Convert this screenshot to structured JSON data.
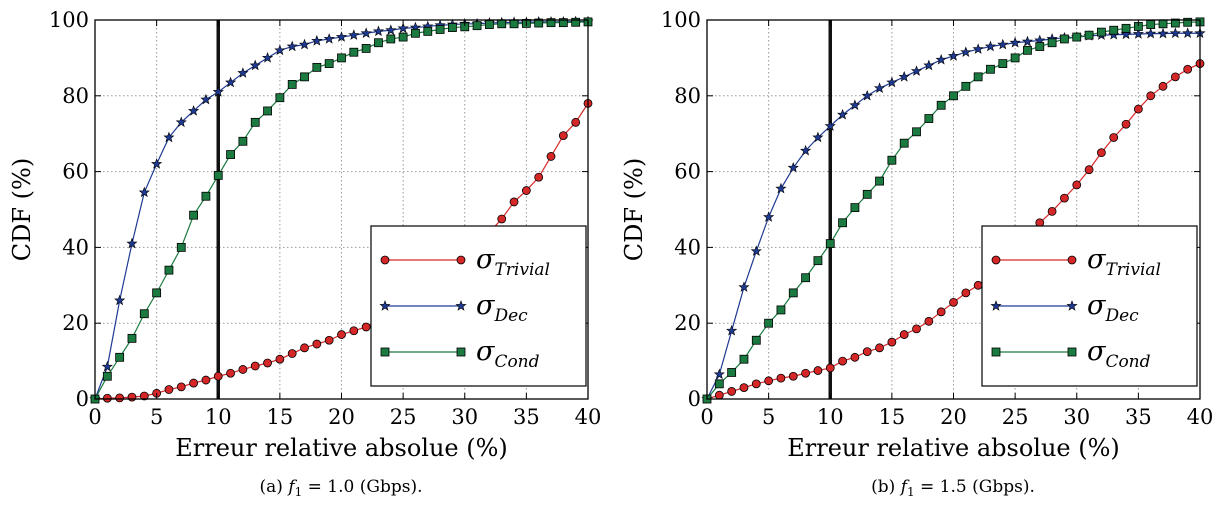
{
  "colors": {
    "trivial": "#d62728",
    "dec": "#1f3a93",
    "cond": "#1a7a40",
    "marker_edge": "#000000",
    "vline": "#111111",
    "grid": "#9a9a9a"
  },
  "chart_data": [
    {
      "type": "line",
      "caption": "(a)  f1 = 1.0 (Gbps).",
      "caption_prefix": "(a)",
      "caption_var": "f",
      "caption_var_sub": "1",
      "caption_rest": "= 1.0 (Gbps).",
      "xlabel": "Erreur relative absolue (%)",
      "ylabel": "CDF (%)",
      "xlim": [
        0,
        40
      ],
      "ylim": [
        0,
        100
      ],
      "xticks": [
        0,
        5,
        10,
        15,
        20,
        25,
        30,
        35,
        40
      ],
      "yticks": [
        0,
        20,
        40,
        60,
        80,
        100
      ],
      "grid": true,
      "vline_x": 10,
      "legend_position": "lower-right",
      "series": [
        {
          "key": "trivial",
          "legend": "σTrivial",
          "legend_symbol": "σ",
          "legend_sub": "Trivial",
          "marker": "circle",
          "x": [
            0,
            1,
            2,
            3,
            4,
            5,
            6,
            7,
            8,
            9,
            10,
            11,
            12,
            13,
            14,
            15,
            16,
            17,
            18,
            19,
            20,
            21,
            22,
            23,
            24,
            25,
            26,
            27,
            28,
            29,
            30,
            31,
            32,
            33,
            34,
            35,
            36,
            37,
            38,
            39,
            40
          ],
          "y": [
            0,
            0.2,
            0.3,
            0.5,
            0.8,
            1.5,
            2.5,
            3.2,
            4.2,
            5,
            6,
            6.8,
            7.8,
            8.7,
            9.5,
            10.5,
            12,
            13.5,
            14.5,
            15.5,
            17,
            18,
            19,
            21,
            23,
            25,
            27,
            29.5,
            32,
            34.5,
            37.5,
            40.5,
            44,
            47.5,
            52,
            55,
            58.5,
            64,
            69.5,
            73,
            78
          ]
        },
        {
          "key": "dec",
          "legend": "σDec",
          "legend_symbol": "σ",
          "legend_sub": "Dec",
          "marker": "star",
          "x": [
            0,
            1,
            2,
            3,
            4,
            5,
            6,
            7,
            8,
            9,
            10,
            11,
            12,
            13,
            14,
            15,
            16,
            17,
            18,
            19,
            20,
            21,
            22,
            23,
            24,
            25,
            26,
            27,
            28,
            29,
            30,
            31,
            32,
            33,
            34,
            35,
            36,
            37,
            38,
            39,
            40
          ],
          "y": [
            0,
            8.5,
            26,
            41,
            54.5,
            62,
            69,
            73,
            76,
            79,
            81,
            83.5,
            86,
            88,
            90,
            92,
            93,
            93.5,
            94.5,
            95,
            95.5,
            96,
            96.5,
            97,
            97.3,
            97.8,
            98,
            98.3,
            98.6,
            98.8,
            99,
            99,
            99.2,
            99.3,
            99.4,
            99.4,
            99.5,
            99.5,
            99.5,
            99.6,
            99.6
          ]
        },
        {
          "key": "cond",
          "legend": "σCond",
          "legend_symbol": "σ",
          "legend_sub": "Cond",
          "marker": "square",
          "x": [
            0,
            1,
            2,
            3,
            4,
            5,
            6,
            7,
            8,
            9,
            10,
            11,
            12,
            13,
            14,
            15,
            16,
            17,
            18,
            19,
            20,
            21,
            22,
            23,
            24,
            25,
            26,
            27,
            28,
            29,
            30,
            31,
            32,
            33,
            34,
            35,
            36,
            37,
            38,
            39,
            40
          ],
          "y": [
            0,
            6,
            11,
            16,
            22.5,
            28,
            34,
            40,
            48.5,
            53.5,
            59,
            64.5,
            68,
            73,
            76,
            79.5,
            83,
            85,
            87.5,
            88.5,
            90,
            91.5,
            92.5,
            94,
            95,
            95.5,
            96.5,
            97,
            97.5,
            98,
            98.2,
            98.5,
            98.8,
            99,
            99,
            99.1,
            99.2,
            99.3,
            99.3,
            99.4,
            99.5
          ]
        }
      ]
    },
    {
      "type": "line",
      "caption": "(b)  f1 = 1.5 (Gbps).",
      "caption_prefix": "(b)",
      "caption_var": "f",
      "caption_var_sub": "1",
      "caption_rest": "= 1.5 (Gbps).",
      "xlabel": "Erreur relative absolue (%)",
      "ylabel": "CDF (%)",
      "xlim": [
        0,
        40
      ],
      "ylim": [
        0,
        100
      ],
      "xticks": [
        0,
        5,
        10,
        15,
        20,
        25,
        30,
        35,
        40
      ],
      "yticks": [
        0,
        20,
        40,
        60,
        80,
        100
      ],
      "grid": true,
      "vline_x": 10,
      "legend_position": "lower-right",
      "series": [
        {
          "key": "trivial",
          "legend": "σTrivial",
          "legend_symbol": "σ",
          "legend_sub": "Trivial",
          "marker": "circle",
          "x": [
            0,
            1,
            2,
            3,
            4,
            5,
            6,
            7,
            8,
            9,
            10,
            11,
            12,
            13,
            14,
            15,
            16,
            17,
            18,
            19,
            20,
            21,
            22,
            23,
            24,
            25,
            26,
            27,
            28,
            29,
            30,
            31,
            32,
            33,
            34,
            35,
            36,
            37,
            38,
            39,
            40
          ],
          "y": [
            0,
            1,
            2,
            3,
            4,
            4.8,
            5.5,
            6,
            6.8,
            7.5,
            8.2,
            10,
            11,
            12.5,
            13.5,
            15,
            17,
            18.5,
            20.5,
            23,
            25.5,
            28,
            30,
            33,
            36.5,
            40,
            43,
            46.5,
            49.5,
            53,
            56.5,
            60.5,
            65,
            69,
            72.5,
            76.5,
            80,
            82.5,
            85,
            87,
            88.5
          ]
        },
        {
          "key": "dec",
          "legend": "σDec",
          "legend_symbol": "σ",
          "legend_sub": "Dec",
          "marker": "star",
          "x": [
            0,
            1,
            2,
            3,
            4,
            5,
            6,
            7,
            8,
            9,
            10,
            11,
            12,
            13,
            14,
            15,
            16,
            17,
            18,
            19,
            20,
            21,
            22,
            23,
            24,
            25,
            26,
            27,
            28,
            29,
            30,
            31,
            32,
            33,
            34,
            35,
            36,
            37,
            38,
            39,
            40
          ],
          "y": [
            0,
            6.5,
            18,
            29.5,
            39,
            48,
            55.5,
            61,
            65.5,
            69,
            72,
            75,
            77.5,
            80,
            82,
            83.5,
            85,
            86.5,
            88,
            89.5,
            90.5,
            91.5,
            92.3,
            93,
            93.5,
            94,
            94.3,
            94.6,
            95,
            95.3,
            95.5,
            95.8,
            96,
            96.1,
            96.2,
            96.3,
            96.4,
            96.4,
            96.5,
            96.5,
            96.5
          ]
        },
        {
          "key": "cond",
          "legend": "σCond",
          "legend_symbol": "σ",
          "legend_sub": "Cond",
          "marker": "square",
          "x": [
            0,
            1,
            2,
            3,
            4,
            5,
            6,
            7,
            8,
            9,
            10,
            11,
            12,
            13,
            14,
            15,
            16,
            17,
            18,
            19,
            20,
            21,
            22,
            23,
            24,
            25,
            26,
            27,
            28,
            29,
            30,
            31,
            32,
            33,
            34,
            35,
            36,
            37,
            38,
            39,
            40
          ],
          "y": [
            0,
            4,
            7,
            10.5,
            15.5,
            20,
            23.5,
            28,
            32,
            36.5,
            41,
            46.5,
            50.5,
            54,
            57.5,
            63,
            67.5,
            70.5,
            74,
            77.5,
            80,
            82.5,
            85,
            87,
            88.5,
            90,
            92,
            93,
            94,
            95,
            95.5,
            96,
            96.8,
            97.3,
            97.8,
            98.3,
            98.8,
            99,
            99.2,
            99.4,
            99.5
          ]
        }
      ]
    }
  ]
}
